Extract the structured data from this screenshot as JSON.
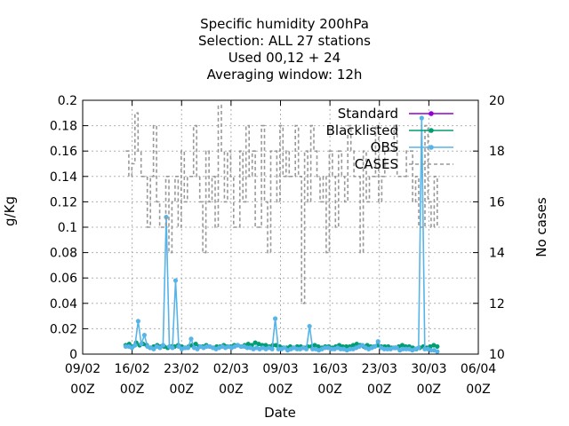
{
  "chart_data": {
    "type": "line",
    "title_lines": [
      "Specific humidity 200hPa",
      "Selection: ALL     27 stations",
      "Used  00,12  + 24",
      "Averaging window: 12h"
    ],
    "xlabel": "Date",
    "ylabel": "g/Kg",
    "y2label": "No cases",
    "ylim": [
      0,
      0.2
    ],
    "y2lim": [
      10,
      20
    ],
    "yticks": [
      "0",
      "0.02",
      "0.04",
      "0.06",
      "0.08",
      "0.1",
      "0.12",
      "0.14",
      "0.16",
      "0.18",
      "0.2"
    ],
    "y2ticks": [
      "10",
      "12",
      "14",
      "16",
      "18",
      "20"
    ],
    "xticks": [
      {
        "date": "09/02",
        "hour": "00Z"
      },
      {
        "date": "16/02",
        "hour": "00Z"
      },
      {
        "date": "23/02",
        "hour": "00Z"
      },
      {
        "date": "02/03",
        "hour": "00Z"
      },
      {
        "date": "09/03",
        "hour": "00Z"
      },
      {
        "date": "16/03",
        "hour": "00Z"
      },
      {
        "date": "23/03",
        "hour": "00Z"
      },
      {
        "date": "30/03",
        "hour": "00Z"
      },
      {
        "date": "06/04",
        "hour": "00Z"
      }
    ],
    "grid": true,
    "legend_position": "top-right",
    "series": [
      {
        "name": "Standard",
        "color": "#9400d3",
        "style": "line-points",
        "axis": "y",
        "values": []
      },
      {
        "name": "Blacklisted",
        "color": "#009e73",
        "style": "line-points",
        "axis": "y",
        "values": [
          0.007,
          0.008,
          0.006,
          0.009,
          0.007,
          0.008,
          0.007,
          0.005,
          0.006,
          0.007,
          0.006,
          0.006,
          0.005,
          0.006,
          0.006,
          0.007,
          0.006,
          0.005,
          0.006,
          0.007,
          0.008,
          0.006,
          0.006,
          0.007,
          0.006,
          0.005,
          0.006,
          0.006,
          0.007,
          0.006,
          0.006,
          0.007,
          0.007,
          0.006,
          0.007,
          0.008,
          0.007,
          0.009,
          0.008,
          0.007,
          0.007,
          0.006,
          0.007,
          0.007,
          0.006,
          0.005,
          0.005,
          0.006,
          0.005,
          0.006,
          0.006,
          0.005,
          0.006,
          0.006,
          0.007,
          0.006,
          0.005,
          0.006,
          0.006,
          0.005,
          0.006,
          0.007,
          0.006,
          0.006,
          0.006,
          0.007,
          0.008,
          0.007,
          0.006,
          0.007,
          0.006,
          0.006,
          0.007,
          0.006,
          0.006,
          0.006,
          0.005,
          0.005,
          0.006,
          0.007,
          0.006,
          0.006,
          0.005,
          0.004,
          0.005,
          0.006,
          0.005,
          0.006,
          0.007,
          0.006
        ]
      },
      {
        "name": "OBS",
        "color": "#56b4e9",
        "style": "line-points",
        "axis": "y",
        "values": [
          0.006,
          0.006,
          0.005,
          0.007,
          0.026,
          0.008,
          0.015,
          0.006,
          0.005,
          0.004,
          0.006,
          0.005,
          0.007,
          0.108,
          0.006,
          0.005,
          0.058,
          0.006,
          0.004,
          0.005,
          0.005,
          0.012,
          0.005,
          0.004,
          0.006,
          0.005,
          0.006,
          0.006,
          0.005,
          0.004,
          0.005,
          0.006,
          0.005,
          0.006,
          0.005,
          0.006,
          0.007,
          0.006,
          0.006,
          0.005,
          0.005,
          0.004,
          0.005,
          0.004,
          0.005,
          0.004,
          0.005,
          0.004,
          0.028,
          0.004,
          0.004,
          0.005,
          0.003,
          0.004,
          0.005,
          0.004,
          0.004,
          0.005,
          0.004,
          0.022,
          0.004,
          0.004,
          0.003,
          0.004,
          0.005,
          0.005,
          0.004,
          0.004,
          0.005,
          0.004,
          0.004,
          0.003,
          0.004,
          0.004,
          0.005,
          0.006,
          0.007,
          0.005,
          0.004,
          0.005,
          0.006,
          0.01,
          0.005,
          0.004,
          0.004,
          0.004,
          0.005,
          0.005,
          0.003,
          0.004,
          0.004,
          0.004,
          0.003,
          0.004,
          0.005,
          0.186,
          0.004,
          0.004,
          0.003,
          0.003,
          0.002
        ]
      },
      {
        "name": "CASES",
        "color": "#999999",
        "style": "dashed-step",
        "axis": "y2",
        "values": [
          18,
          17,
          17.5,
          19.5,
          18,
          17,
          17,
          15,
          17,
          19,
          16,
          15,
          15,
          17,
          14,
          16,
          17,
          15,
          18,
          16,
          17,
          17,
          19,
          17,
          16,
          14,
          18,
          16,
          17,
          15,
          19.8,
          18,
          16,
          18,
          17,
          15,
          15,
          18,
          16,
          19,
          17,
          18,
          15,
          15,
          19,
          16,
          14,
          18,
          18,
          16,
          19,
          17,
          18,
          17,
          17,
          19,
          17,
          12,
          18,
          16,
          19,
          18,
          17,
          16,
          17,
          14,
          18,
          17,
          15,
          18,
          17,
          16,
          19,
          18,
          17,
          17,
          14,
          18,
          16,
          17,
          17,
          19,
          16,
          17,
          18,
          18,
          18,
          19,
          17,
          17,
          17,
          18,
          18,
          16,
          17,
          15,
          15,
          19,
          16,
          15,
          17,
          15
        ]
      }
    ]
  }
}
